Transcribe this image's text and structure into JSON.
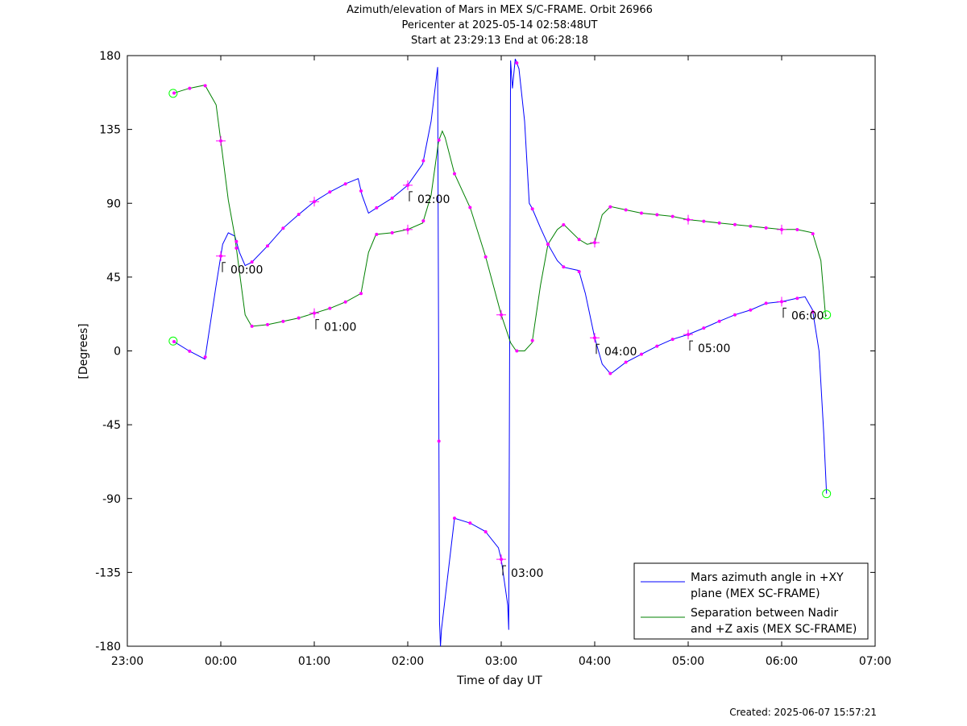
{
  "header": {
    "title": "Azimuth/elevation of Mars in MEX S/C-FRAME.  Orbit 26966",
    "subtitle1": "Pericenter at 2025-05-14 02:58:48UT",
    "subtitle2": "Start at 23:29:13 End at 06:28:18"
  },
  "footer": {
    "created": "Created: 2025-06-07 15:57:21"
  },
  "colors": {
    "azimuth": "#0000ff",
    "separation": "#008000",
    "markers": "#ff00ff",
    "endpoints": "#00ff00"
  },
  "chart_data": {
    "type": "line",
    "xlabel": "Time of day UT",
    "ylabel": "[Degrees]",
    "xlim": [
      -1,
      7
    ],
    "ylim": [
      -180,
      180
    ],
    "x_ticks": [
      -1,
      0,
      1,
      2,
      3,
      4,
      5,
      6,
      7
    ],
    "x_tick_labels": [
      "23:00",
      "00:00",
      "01:00",
      "02:00",
      "03:00",
      "04:00",
      "05:00",
      "06:00",
      "07:00"
    ],
    "y_ticks": [
      180,
      135,
      90,
      45,
      0,
      -45,
      -90,
      -135,
      -180
    ],
    "y_tick_labels": [
      "180",
      "135",
      "90",
      "45",
      "0",
      "-45",
      "-90",
      "-135",
      "-180"
    ],
    "grid": false,
    "legend_position": "bottom-right",
    "series": [
      {
        "name": "Mars azimuth angle in +XY plane (MEX SC-FRAME)",
        "legend_lines": [
          "Mars azimuth angle in +XY",
          "plane (MEX SC-FRAME)"
        ],
        "x": [
          -0.51,
          -0.34,
          -0.17,
          -0.05,
          0.02,
          0.08,
          0.15,
          0.2,
          0.26,
          0.33,
          0.5,
          0.67,
          0.83,
          1.0,
          1.17,
          1.34,
          1.47,
          1.51,
          1.58,
          1.66,
          1.83,
          2.0,
          2.16,
          2.25,
          2.32,
          2.33,
          2.34,
          2.35,
          2.36,
          2.5,
          2.67,
          2.83,
          2.97,
          3.0,
          3.07,
          3.08,
          3.1,
          3.12,
          3.15,
          3.19,
          3.25,
          3.3,
          3.33,
          3.42,
          3.5,
          3.6,
          3.67,
          3.83,
          3.9,
          4.0,
          4.08,
          4.17,
          4.33,
          4.5,
          4.67,
          4.83,
          5.0,
          5.17,
          5.33,
          5.5,
          5.67,
          5.83,
          6.0,
          6.16,
          6.25,
          6.33,
          6.4,
          6.45,
          6.48
        ],
        "y": [
          6,
          0,
          -5,
          40,
          65,
          72,
          70,
          60,
          52,
          54,
          64,
          75,
          83,
          91,
          97,
          102,
          105,
          95,
          84,
          87,
          93,
          101,
          114,
          140,
          173,
          0,
          -165,
          -180,
          -170,
          -102,
          -105,
          -110,
          -120,
          -127,
          -155,
          -170,
          177,
          160,
          178,
          172,
          140,
          90,
          87,
          75,
          65,
          55,
          51,
          49,
          35,
          8,
          -8,
          -14,
          -7,
          -2,
          3,
          7,
          10,
          14,
          18,
          22,
          25,
          29,
          30,
          32,
          33,
          25,
          0,
          -50,
          -87
        ]
      },
      {
        "name": "Separation between Nadir and +Z axis (MEX SC-FRAME)",
        "legend_lines": [
          "Separation between Nadir",
          "and +Z axis (MEX SC-FRAME)"
        ],
        "x": [
          -0.51,
          -0.34,
          -0.17,
          -0.05,
          0.0,
          0.08,
          0.15,
          0.2,
          0.26,
          0.33,
          0.5,
          0.67,
          0.83,
          1.0,
          1.17,
          1.34,
          1.5,
          1.58,
          1.66,
          1.83,
          2.0,
          2.16,
          2.25,
          2.33,
          2.37,
          2.4,
          2.5,
          2.67,
          2.83,
          3.0,
          3.1,
          3.16,
          3.25,
          3.33,
          3.42,
          3.5,
          3.6,
          3.67,
          3.83,
          3.92,
          4.0,
          4.08,
          4.17,
          4.33,
          4.5,
          4.67,
          4.83,
          5.0,
          5.17,
          5.33,
          5.5,
          5.67,
          5.83,
          6.0,
          6.16,
          6.25,
          6.33,
          6.42,
          6.47,
          6.48
        ],
        "y": [
          157,
          160,
          162,
          150,
          128,
          92,
          70,
          48,
          22,
          15,
          16,
          18,
          20,
          23,
          26,
          30,
          35,
          60,
          71,
          72,
          74,
          78,
          95,
          128,
          134,
          130,
          108,
          87,
          58,
          22,
          5,
          0,
          0,
          5,
          40,
          65,
          74,
          77,
          68,
          65,
          66,
          83,
          88,
          86,
          84,
          83,
          82,
          80,
          79,
          78,
          77,
          76,
          75,
          74,
          74,
          73,
          72,
          55,
          21,
          22
        ]
      }
    ],
    "tick_markers": {
      "times": [
        0,
        1,
        2,
        3,
        4,
        5,
        6
      ],
      "labels": [
        "00:00",
        "01:00",
        "02:00",
        "03:00",
        "04:00",
        "05:00",
        "06:00"
      ]
    }
  }
}
